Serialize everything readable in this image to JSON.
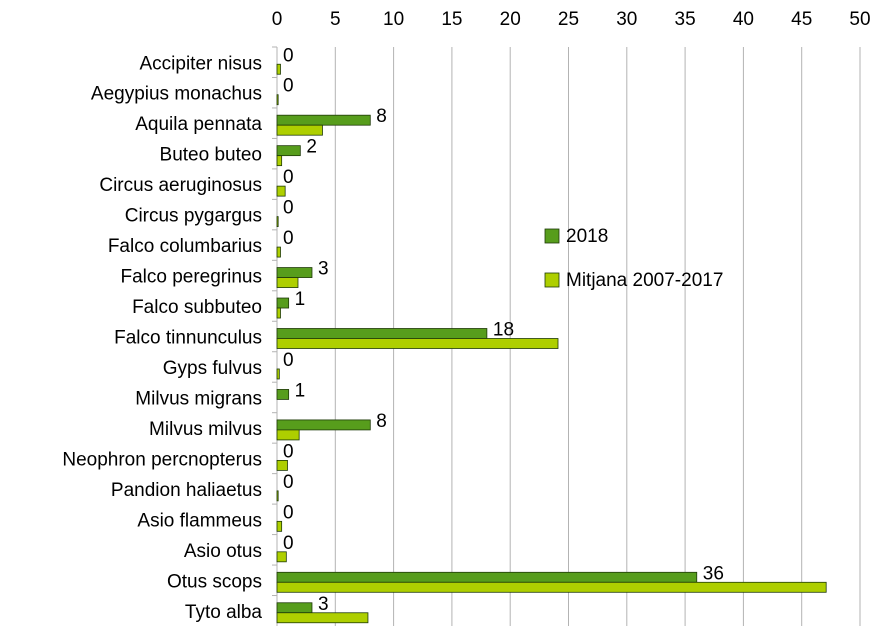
{
  "chart_data": {
    "type": "hbar",
    "categories": [
      "Accipiter nisus",
      "Aegypius monachus",
      "Aquila pennata",
      "Buteo buteo",
      "Circus aeruginosus",
      "Circus pygargus",
      "Falco columbarius",
      "Falco peregrinus",
      "Falco subbuteo",
      "Falco tinnunculus",
      "Gyps fulvus",
      "Milvus migrans",
      "Milvus milvus",
      "Neophron percnopterus",
      "Pandion haliaetus",
      "Asio flammeus",
      "Asio otus",
      "Otus scops",
      "Tyto alba"
    ],
    "series": [
      {
        "name": "2018",
        "color": "#579d1c",
        "values": [
          0,
          0,
          8,
          2,
          0,
          0,
          0,
          3,
          1,
          18,
          0,
          1,
          8,
          0,
          0,
          0,
          0,
          36,
          3
        ]
      },
      {
        "name": "Mitjana 2007-2017",
        "color": "#aecf00",
        "values": [
          0.3,
          0.1,
          3.9,
          0.4,
          0.7,
          0.1,
          0.3,
          1.8,
          0.3,
          24.1,
          0.2,
          0,
          1.9,
          0.9,
          0.1,
          0.4,
          0.8,
          47.1,
          7.8
        ]
      }
    ],
    "xlim": [
      0,
      50
    ],
    "xticks": [
      0,
      5,
      10,
      15,
      20,
      25,
      30,
      35,
      40,
      45,
      50
    ],
    "grid": true
  }
}
